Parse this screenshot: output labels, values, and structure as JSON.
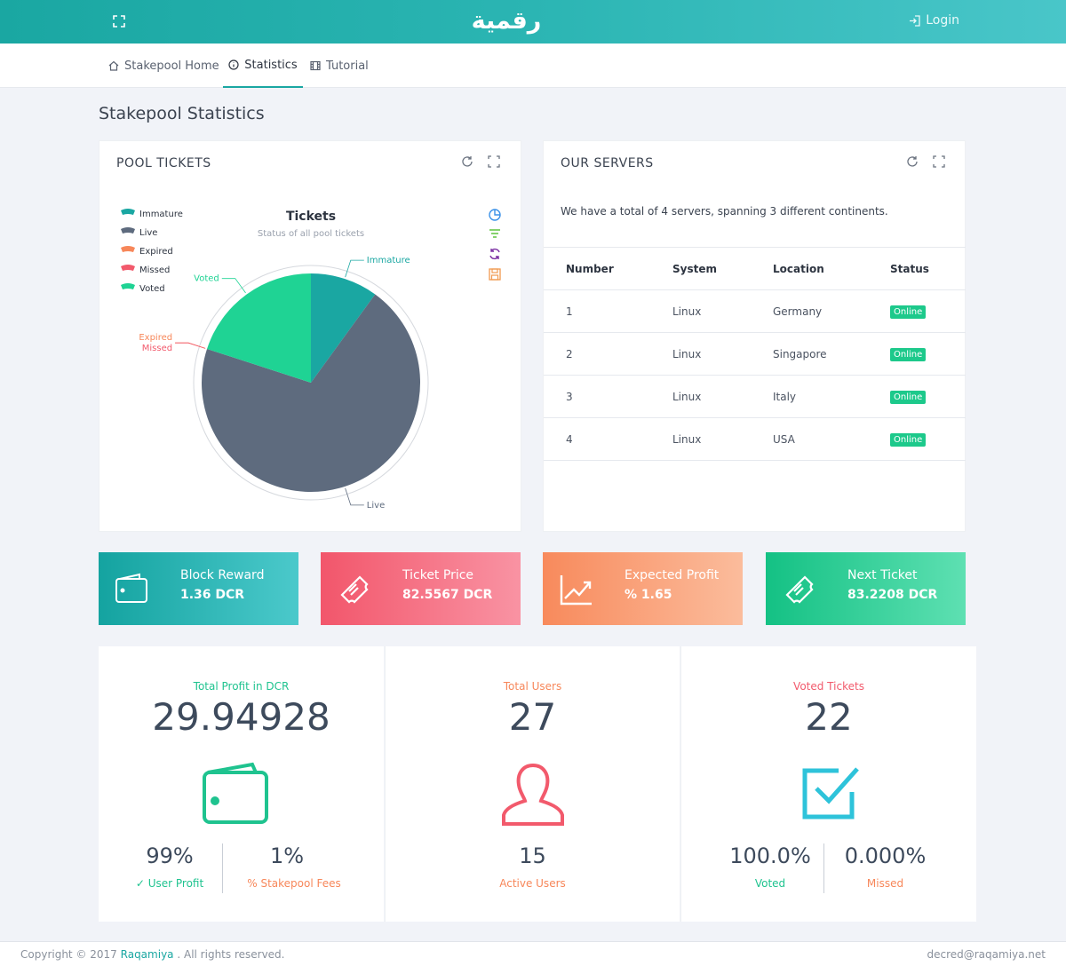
{
  "topbar": {
    "logo_text": "رقمية",
    "login_label": "Login"
  },
  "nav": {
    "items": [
      {
        "label": "Stakepool Home"
      },
      {
        "label": "Statistics"
      },
      {
        "label": "Tutorial"
      }
    ]
  },
  "page_title": "Stakepool Statistics",
  "pool_tickets": {
    "card_title": "POOL TICKETS",
    "chart_data": {
      "type": "pie",
      "title": "Tickets",
      "subtitle": "Status of all pool tickets",
      "legend": [
        "Immature",
        "Live",
        "Expired",
        "Missed",
        "Voted"
      ],
      "legend_position": "top-left",
      "slices": [
        {
          "name": "Immature",
          "value": 10,
          "color": "#1aa7a2"
        },
        {
          "name": "Live",
          "value": 70,
          "color": "#5e6b7e"
        },
        {
          "name": "Expired",
          "value": 0,
          "color": "#f7875a"
        },
        {
          "name": "Missed",
          "value": 0,
          "color": "#f25a6c"
        },
        {
          "name": "Voted",
          "value": 20,
          "color": "#1fd394"
        }
      ]
    }
  },
  "servers": {
    "card_title": "OUR SERVERS",
    "summary": "We have a total of 4 servers, spanning 3 different continents.",
    "columns": [
      "Number",
      "System",
      "Location",
      "Status"
    ],
    "rows": [
      {
        "number": "1",
        "system": "Linux",
        "location": "Germany",
        "status": "Online"
      },
      {
        "number": "2",
        "system": "Linux",
        "location": "Singapore",
        "status": "Online"
      },
      {
        "number": "3",
        "system": "Linux",
        "location": "Italy",
        "status": "Online"
      },
      {
        "number": "4",
        "system": "Linux",
        "location": "USA",
        "status": "Online"
      }
    ]
  },
  "tiles": [
    {
      "label": "Block Reward",
      "value": "1.36 DCR",
      "icon": "wallet-icon"
    },
    {
      "label": "Ticket Price",
      "value": "82.5567 DCR",
      "icon": "ticket-icon"
    },
    {
      "label": "Expected Profit",
      "value": "% 1.65",
      "icon": "chart-line-icon"
    },
    {
      "label": "Next Ticket",
      "value": "83.2208 DCR",
      "icon": "ticket-icon"
    }
  ],
  "profit": {
    "label": "Total Profit in DCR",
    "value": "29.94928",
    "left_value": "99%",
    "left_label": "User Profit",
    "right_value": "1%",
    "right_label": "Stakepool Fees"
  },
  "users": {
    "label": "Total Users",
    "value": "27",
    "active_value": "15",
    "active_label": "Active Users"
  },
  "voted": {
    "label": "Voted Tickets",
    "value": "22",
    "left_value": "100.0%",
    "left_label": "Voted",
    "right_value": "0.000%",
    "right_label": "Missed"
  },
  "footer": {
    "copyright_prefix": "Copyright © 2017",
    "brand": "Raqamiya",
    "copyright_suffix": ". All rights reserved.",
    "email": "decred@raqamiya.net"
  },
  "colors": {
    "teal": "#1aa7a2",
    "red": "#f25a6c",
    "orange": "#f7875a",
    "green": "#1fd394"
  }
}
